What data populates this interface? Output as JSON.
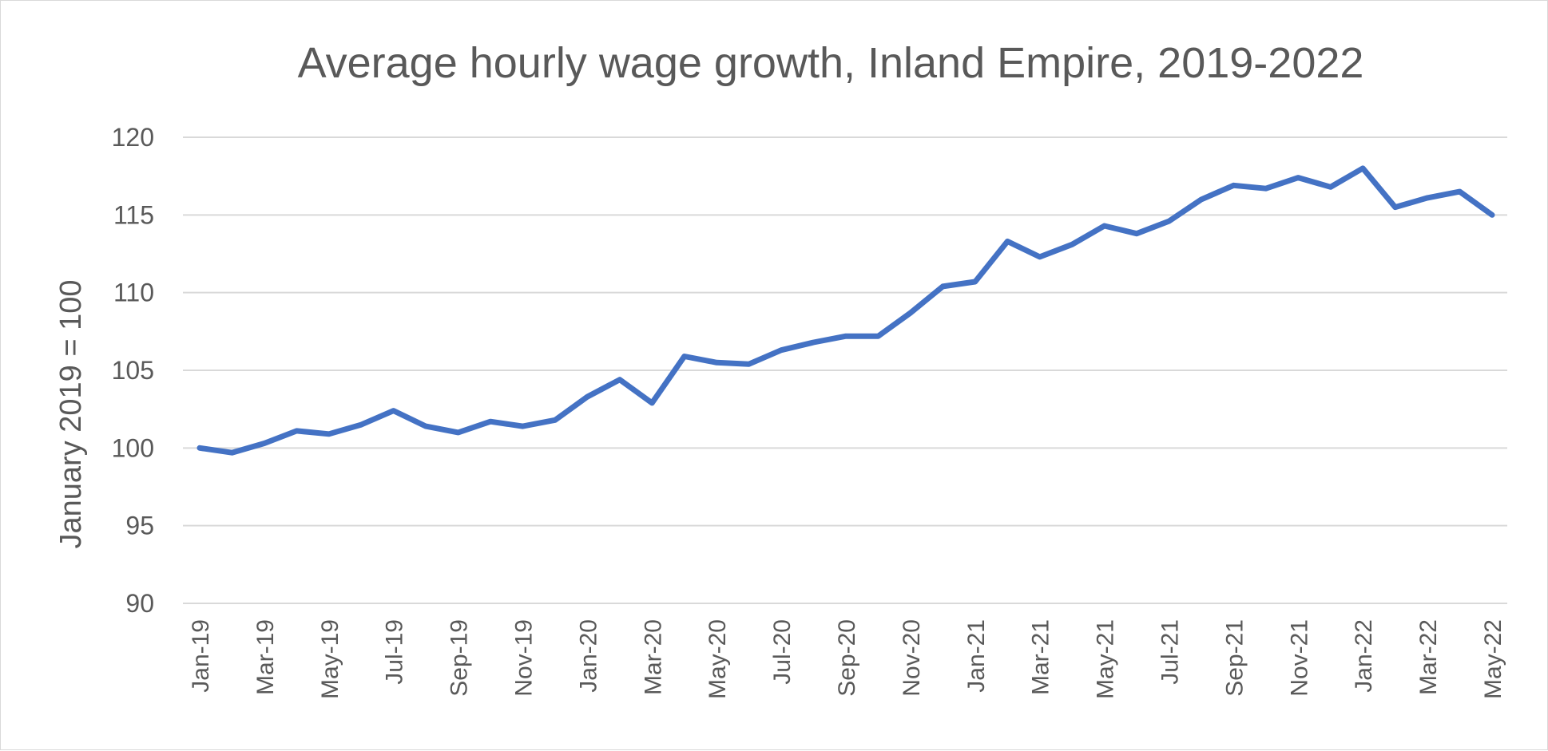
{
  "chart_data": {
    "type": "line",
    "title": "Average hourly wage growth, Inland Empire, 2019-2022",
    "xlabel": "",
    "ylabel": "January 2019 = 100",
    "ylim": [
      90,
      120
    ],
    "yticks": [
      90,
      95,
      100,
      105,
      110,
      115,
      120
    ],
    "ytick_labels": [
      "90",
      "95",
      "100",
      "105",
      "110",
      "115",
      "120"
    ],
    "grid": true,
    "legend": "none",
    "categories": [
      "Jan-19",
      "Feb-19",
      "Mar-19",
      "Apr-19",
      "May-19",
      "Jun-19",
      "Jul-19",
      "Aug-19",
      "Sep-19",
      "Oct-19",
      "Nov-19",
      "Dec-19",
      "Jan-20",
      "Feb-20",
      "Mar-20",
      "Apr-20",
      "May-20",
      "Jun-20",
      "Jul-20",
      "Aug-20",
      "Sep-20",
      "Oct-20",
      "Nov-20",
      "Dec-20",
      "Jan-21",
      "Feb-21",
      "Mar-21",
      "Apr-21",
      "May-21",
      "Jun-21",
      "Jul-21",
      "Aug-21",
      "Sep-21",
      "Oct-21",
      "Nov-21",
      "Dec-21",
      "Jan-22",
      "Feb-22",
      "Mar-22",
      "Apr-22",
      "May-22"
    ],
    "tick_labels": [
      "Jan-19",
      "Mar-19",
      "May-19",
      "Jul-19",
      "Sep-19",
      "Nov-19",
      "Jan-20",
      "Mar-20",
      "May-20",
      "Jul-20",
      "Sep-20",
      "Nov-20",
      "Jan-21",
      "Mar-21",
      "May-21",
      "Jul-21",
      "Sep-21",
      "Nov-21",
      "Jan-22",
      "Mar-22",
      "May-22"
    ],
    "series": [
      {
        "color": "#4472c4",
        "values": [
          100.0,
          99.7,
          100.3,
          101.1,
          100.9,
          101.5,
          102.4,
          101.4,
          101.0,
          101.7,
          101.4,
          101.8,
          103.3,
          104.4,
          102.9,
          105.9,
          105.5,
          105.4,
          106.3,
          106.8,
          107.2,
          107.2,
          108.7,
          110.4,
          110.7,
          113.3,
          112.3,
          113.1,
          114.3,
          113.8,
          114.6,
          116.0,
          116.9,
          116.7,
          117.4,
          116.8,
          118.0,
          115.5,
          116.1,
          116.5,
          115.0
        ]
      }
    ]
  }
}
